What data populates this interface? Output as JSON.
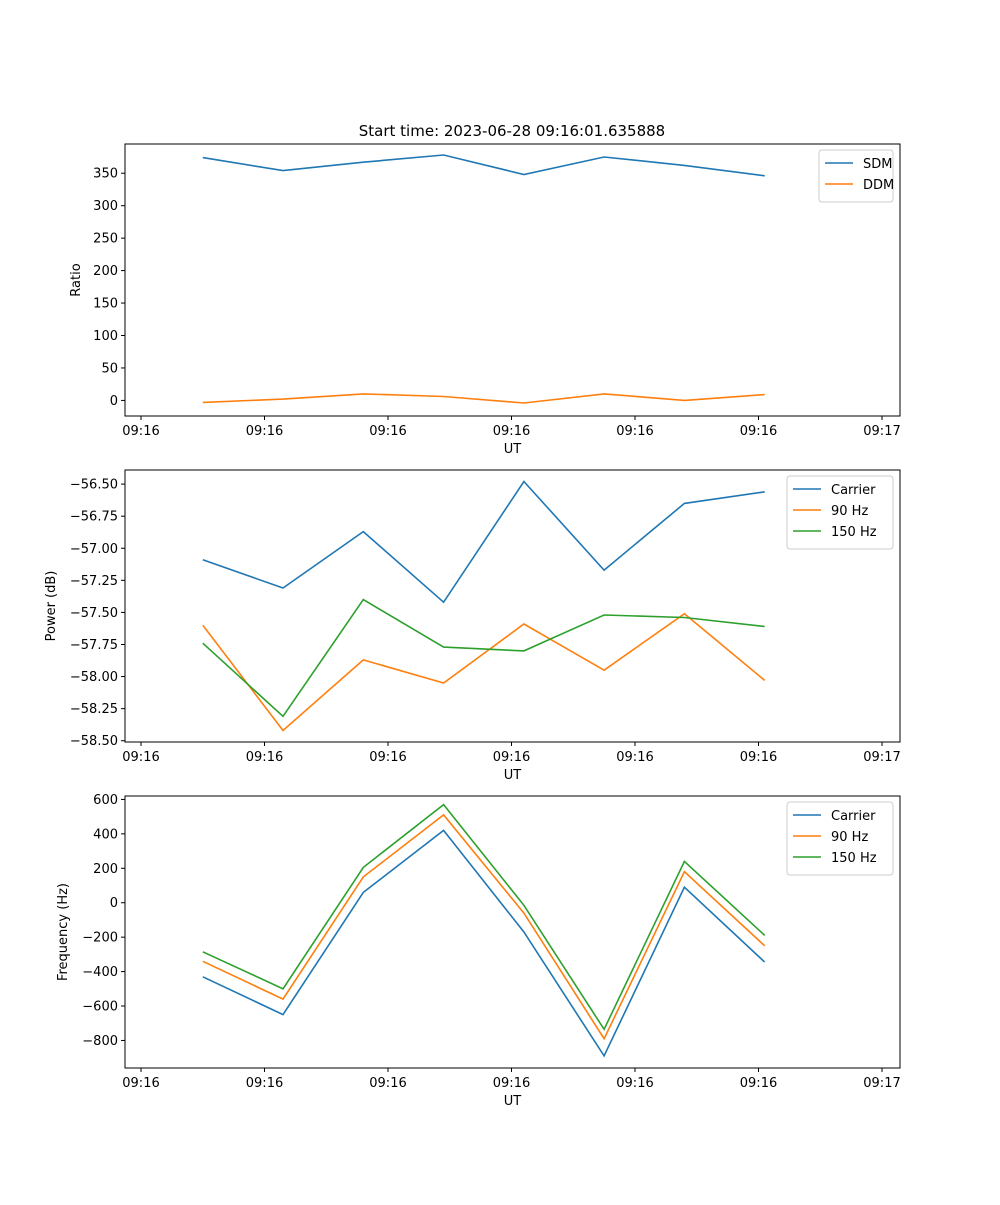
{
  "figure_title": "Start time: 2023-06-28 09:16:01.635888",
  "chart_data": [
    {
      "type": "line",
      "xlabel": "UT",
      "ylabel": "Ratio",
      "x_ticks": [
        "09:16",
        "09:16",
        "09:16",
        "09:16",
        "09:16",
        "09:16",
        "09:17"
      ],
      "y_ticks": [
        "0",
        "50",
        "100",
        "150",
        "200",
        "250",
        "300",
        "350"
      ],
      "ylim": [
        -24,
        395
      ],
      "legend_position": "upper-right",
      "x": [
        0.5,
        1.15,
        1.8,
        2.45,
        3.1,
        3.75,
        4.4,
        5.05
      ],
      "series": [
        {
          "name": "SDM",
          "color": "#1f77b4",
          "values": [
            374,
            354,
            367,
            378,
            348,
            375,
            362,
            346
          ]
        },
        {
          "name": "DDM",
          "color": "#ff7f0e",
          "values": [
            -3,
            2,
            10,
            6,
            -4,
            10,
            0,
            9
          ]
        }
      ]
    },
    {
      "type": "line",
      "xlabel": "UT",
      "ylabel": "Power (dB)",
      "x_ticks": [
        "09:16",
        "09:16",
        "09:16",
        "09:16",
        "09:16",
        "09:16",
        "09:17"
      ],
      "y_ticks": [
        "−58.50",
        "−58.25",
        "−58.00",
        "−57.75",
        "−57.50",
        "−57.25",
        "−57.00",
        "−56.75",
        "−56.50"
      ],
      "ylim": [
        -58.51,
        -56.39
      ],
      "legend_position": "upper-right",
      "x": [
        0.5,
        1.15,
        1.8,
        2.45,
        3.1,
        3.75,
        4.4,
        5.05
      ],
      "series": [
        {
          "name": "Carrier",
          "color": "#1f77b4",
          "values": [
            -57.09,
            -57.31,
            -56.87,
            -57.42,
            -56.48,
            -57.17,
            -56.65,
            -56.56
          ]
        },
        {
          "name": "90 Hz",
          "color": "#ff7f0e",
          "values": [
            -57.6,
            -58.42,
            -57.87,
            -58.05,
            -57.59,
            -57.95,
            -57.51,
            -58.03
          ]
        },
        {
          "name": "150 Hz",
          "color": "#2ca02c",
          "values": [
            -57.74,
            -58.31,
            -57.4,
            -57.77,
            -57.8,
            -57.52,
            -57.54,
            -57.61
          ]
        }
      ]
    },
    {
      "type": "line",
      "xlabel": "UT",
      "ylabel": "Frequency (Hz)",
      "x_ticks": [
        "09:16",
        "09:16",
        "09:16",
        "09:16",
        "09:16",
        "09:16",
        "09:17"
      ],
      "y_ticks": [
        "−800",
        "−600",
        "−400",
        "−200",
        "0",
        "200",
        "400",
        "600"
      ],
      "ylim": [
        -960,
        620
      ],
      "legend_position": "upper-right",
      "x": [
        0.5,
        1.15,
        1.8,
        2.45,
        3.1,
        3.75,
        4.4,
        5.05
      ],
      "series": [
        {
          "name": "Carrier",
          "color": "#1f77b4",
          "values": [
            -430,
            -650,
            60,
            420,
            -170,
            -890,
            90,
            -345
          ]
        },
        {
          "name": "90 Hz",
          "color": "#ff7f0e",
          "values": [
            -340,
            -560,
            150,
            510,
            -60,
            -790,
            180,
            -250
          ]
        },
        {
          "name": "150 Hz",
          "color": "#2ca02c",
          "values": [
            -285,
            -500,
            205,
            570,
            -15,
            -735,
            240,
            -190
          ]
        }
      ]
    }
  ]
}
